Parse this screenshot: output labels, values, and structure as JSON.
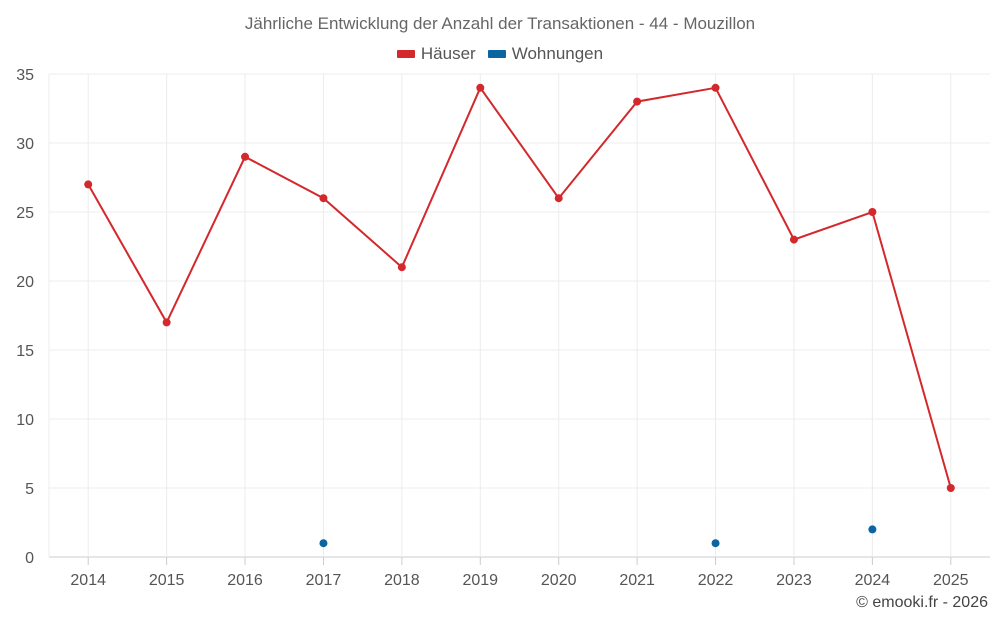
{
  "chart_data": {
    "type": "line",
    "title": "Jährliche Entwicklung der Anzahl der Transaktionen - 44 - Mouzillon",
    "xlabel": "",
    "ylabel": "",
    "categories": [
      "2014",
      "2015",
      "2016",
      "2017",
      "2018",
      "2019",
      "2020",
      "2021",
      "2022",
      "2023",
      "2024",
      "2025"
    ],
    "ylim": [
      0,
      35
    ],
    "yticks": [
      "0",
      "5",
      "10",
      "15",
      "20",
      "25",
      "30",
      "35"
    ],
    "grid": true,
    "legend_position": "top-center",
    "series": [
      {
        "name": "Häuser",
        "color": "#d3282c",
        "values": [
          27,
          17,
          29,
          26,
          21,
          34,
          26,
          33,
          34,
          23,
          25,
          5
        ]
      },
      {
        "name": "Wohnungen",
        "color": "#0a65a0",
        "values": [
          null,
          null,
          null,
          1,
          null,
          null,
          null,
          null,
          1,
          null,
          2,
          null
        ]
      }
    ]
  },
  "credit": "© emooki.fr - 2026"
}
